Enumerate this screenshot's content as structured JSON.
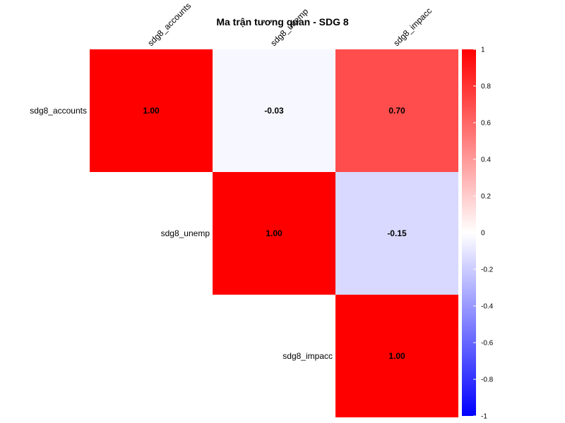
{
  "chart_data": {
    "type": "heatmap",
    "title": "Ma trận tương quan - SDG 8",
    "variables": [
      "sdg8_accounts",
      "sdg8_unemp",
      "sdg8_impacc"
    ],
    "matrix": [
      [
        1.0,
        -0.03,
        0.7
      ],
      [
        null,
        1.0,
        -0.15
      ],
      [
        null,
        null,
        1.0
      ]
    ],
    "cell_labels": [
      [
        "1.00",
        "-0.03",
        "0.70"
      ],
      [
        "",
        "1.00",
        "-0.15"
      ],
      [
        "",
        "",
        "1.00"
      ]
    ],
    "triangle": "upper",
    "colorbar": {
      "range": [
        -1,
        1
      ],
      "ticks": [
        1,
        0.8,
        0.6,
        0.4,
        0.2,
        0,
        -0.2,
        -0.4,
        -0.6,
        -0.8,
        -1
      ],
      "tick_labels": [
        "1",
        "0.8",
        "0.6",
        "0.4",
        "0.2",
        "0",
        "-0.2",
        "-0.4",
        "-0.6",
        "-0.8",
        "-1"
      ],
      "low_color": "#0000ff",
      "mid_color": "#ffffff",
      "high_color": "#ff0000"
    },
    "legend_position": "right"
  }
}
